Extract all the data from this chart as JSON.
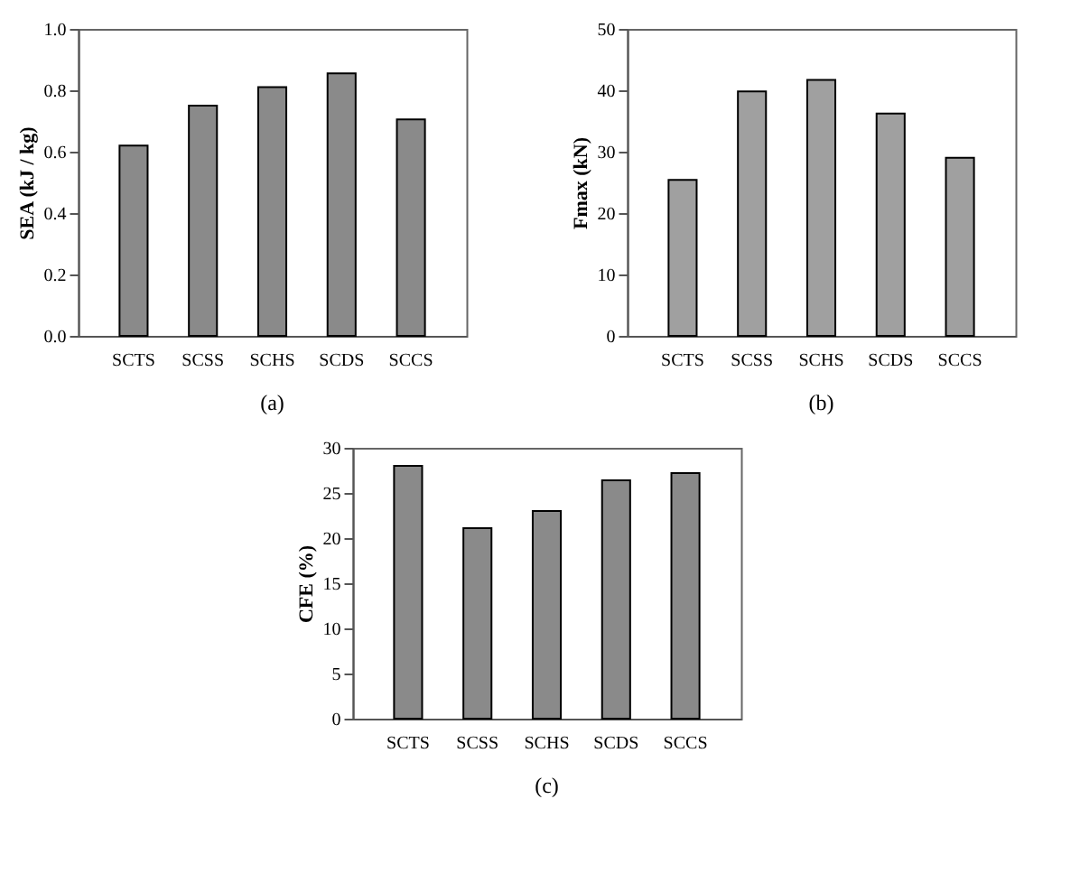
{
  "chart_data": [
    {
      "type": "bar",
      "categories": [
        "SCTS",
        "SCSS",
        "SCHS",
        "SCDS",
        "SCCS"
      ],
      "values": [
        0.62,
        0.75,
        0.81,
        0.855,
        0.705
      ],
      "color": "#8a8a8a",
      "ylabel": "SEA (kJ / kg)",
      "ylim": [
        0,
        1
      ],
      "yticks": [
        {
          "value": 0,
          "label": "0.0"
        },
        0.2,
        0.4,
        0.6,
        0.8,
        {
          "value": 1,
          "label": "1.0"
        }
      ],
      "annotations": [
        "(a)"
      ]
    },
    {
      "type": "bar",
      "categories": [
        "SCTS",
        "SCSS",
        "SCHS",
        "SCDS",
        "SCCS"
      ],
      "values": [
        25.4,
        39.8,
        41.7,
        36.2,
        29.0
      ],
      "color": "#a0a0a0",
      "ylabel": "Fmax (kN)",
      "ylim": [
        0,
        50
      ],
      "yticks": [
        0,
        10,
        20,
        30,
        40,
        50
      ],
      "annotations": [
        "(b)"
      ]
    },
    {
      "type": "bar",
      "categories": [
        "SCTS",
        "SCSS",
        "SCHS",
        "SCDS",
        "SCCS"
      ],
      "values": [
        28.0,
        21.1,
        23.0,
        26.4,
        27.2
      ],
      "color": "#8a8a8a",
      "ylabel": "CFE (%)",
      "ylim": [
        0,
        30
      ],
      "yticks": [
        0,
        5,
        10,
        15,
        20,
        25,
        30
      ],
      "annotations": [
        "(c)"
      ]
    }
  ]
}
